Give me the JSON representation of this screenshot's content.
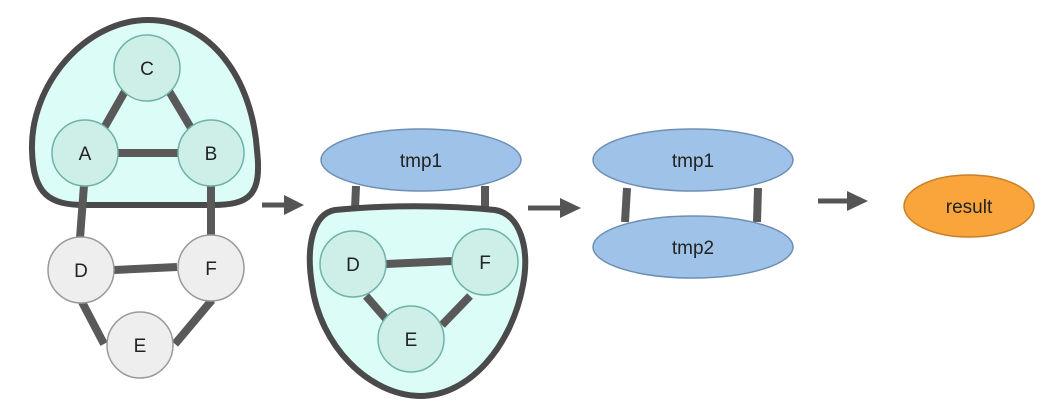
{
  "colors": {
    "edge": "#595959",
    "outline": "#4a4a4a",
    "cluster_fill": "#dcfcf7",
    "cluster_node_fill": "#cdefe8",
    "cluster_node_stroke": "#6fb2a6",
    "plain_node_fill": "#eeeeee",
    "plain_node_stroke": "#9a9a9a",
    "tmp_fill": "#9fc3e8",
    "tmp_stroke": "#6e8fb4",
    "result_fill": "#f9a53c",
    "result_stroke": "#c98127",
    "arrow": "#555555"
  },
  "stage1": {
    "nodes": {
      "A": "A",
      "B": "B",
      "C": "C",
      "D": "D",
      "E": "E",
      "F": "F"
    }
  },
  "stage2": {
    "tmp1": "tmp1",
    "nodes": {
      "D": "D",
      "E": "E",
      "F": "F"
    }
  },
  "stage3": {
    "tmp1": "tmp1",
    "tmp2": "tmp2"
  },
  "stage4": {
    "result": "result"
  }
}
